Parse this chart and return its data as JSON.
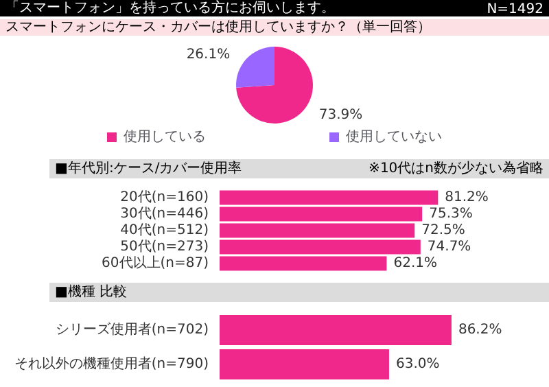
{
  "chart_data": [
    {
      "type": "pie",
      "title": "「スマートフォン」を持っている方にお伺いします。",
      "subtitle": "スマートフォンにケース・カバーは使用していますか？（単一回答）",
      "annotations": [
        "N=1492"
      ],
      "categories": [
        "使用している",
        "使用していない"
      ],
      "values": [
        73.9,
        26.1
      ],
      "colors": [
        "#f0288c",
        "#9966ff"
      ],
      "value_labels": [
        "73.9%",
        "26.1%"
      ],
      "legend": "bottom"
    },
    {
      "type": "bar",
      "orientation": "horizontal",
      "title": "■年代別:ケース/カバー使用率",
      "annotations": [
        "※10代はn数が少ない為省略"
      ],
      "categories": [
        "20代(n=160)",
        "30代(n=446)",
        "40代(n=512)",
        "50代(n=273)",
        "60代以上(n=87)"
      ],
      "series": [
        {
          "color": "#f0288c",
          "values": [
            81.2,
            75.3,
            72.5,
            74.7,
            62.1
          ],
          "value_labels": [
            "81.2%",
            "75.3%",
            "72.5%",
            "74.7%",
            "62.1%"
          ]
        }
      ]
    },
    {
      "type": "bar",
      "orientation": "horizontal",
      "title": "■機種 比較",
      "categories": [
        "シリーズ使用者(n=702)",
        "それ以外の機種使用者(n=790)"
      ],
      "series": [
        {
          "color": "#f0288c",
          "values": [
            86.2,
            63.0
          ],
          "value_labels": [
            "86.2%",
            "63.0%"
          ]
        }
      ]
    }
  ]
}
